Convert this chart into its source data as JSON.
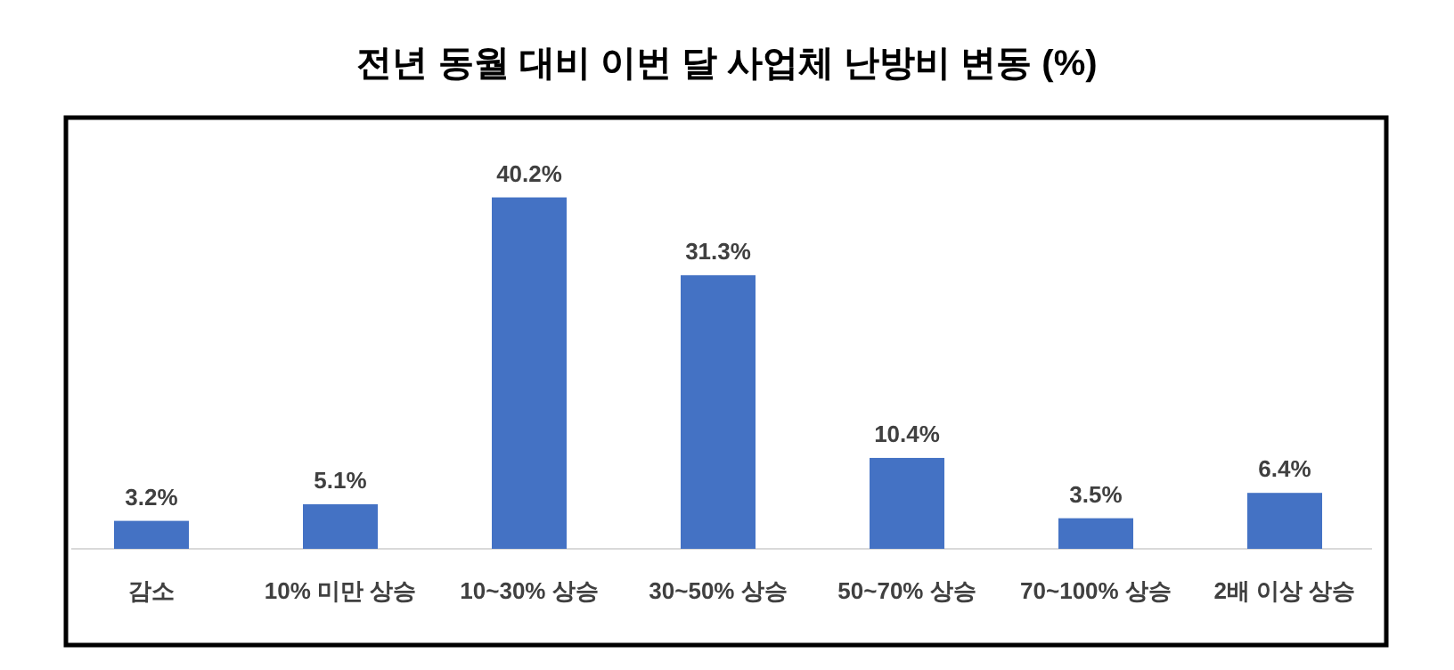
{
  "chart_data": {
    "type": "bar",
    "title": "전년 동월 대비 이번 달 사업체 난방비 변동 (%)",
    "categories": [
      "감소",
      "10% 미만 상승",
      "10~30% 상승",
      "30~50% 상승",
      "50~70% 상승",
      "70~100% 상승",
      "2배 이상 상승"
    ],
    "values": [
      3.2,
      5.1,
      40.2,
      31.3,
      10.4,
      3.5,
      6.4
    ],
    "value_labels": [
      "3.2%",
      "5.1%",
      "40.2%",
      "31.3%",
      "10.4%",
      "3.5%",
      "6.4%"
    ],
    "color": "#4472c4"
  }
}
